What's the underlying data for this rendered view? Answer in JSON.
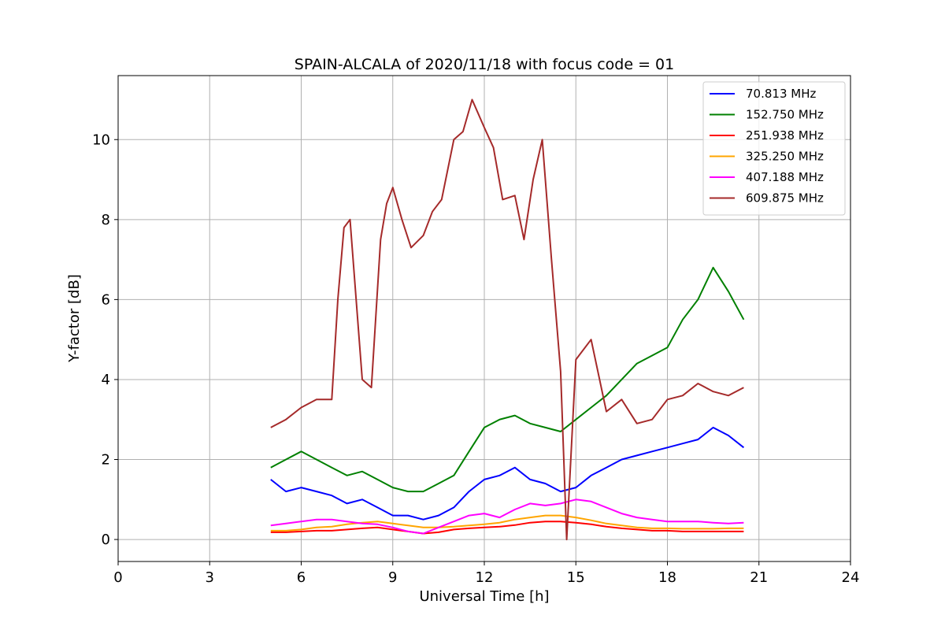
{
  "chart_data": {
    "type": "line",
    "title": "SPAIN-ALCALA of 2020/11/18 with focus code = 01",
    "xlabel": "Universal Time [h]",
    "ylabel": "Y-factor [dB]",
    "xlim": [
      0,
      24
    ],
    "ylim": [
      -0.55,
      11.6
    ],
    "xticks": [
      0,
      3,
      6,
      9,
      12,
      15,
      18,
      21,
      24
    ],
    "yticks": [
      0,
      2,
      4,
      6,
      8,
      10
    ],
    "grid": true,
    "legend_position": "top-right",
    "series": [
      {
        "name": " 70.813 MHz",
        "color": "#0000ff",
        "x": [
          5.0,
          5.5,
          6.0,
          6.5,
          7.0,
          7.5,
          8.0,
          8.5,
          9.0,
          9.5,
          10.0,
          10.5,
          11.0,
          11.5,
          12.0,
          12.5,
          13.0,
          13.5,
          14.0,
          14.5,
          15.0,
          15.5,
          16.0,
          16.5,
          17.0,
          17.5,
          18.0,
          18.5,
          19.0,
          19.5,
          20.0,
          20.5
        ],
        "y": [
          1.5,
          1.2,
          1.3,
          1.2,
          1.1,
          0.9,
          1.0,
          0.8,
          0.6,
          0.6,
          0.5,
          0.6,
          0.8,
          1.2,
          1.5,
          1.6,
          1.8,
          1.5,
          1.4,
          1.2,
          1.3,
          1.6,
          1.8,
          2.0,
          2.1,
          2.2,
          2.3,
          2.4,
          2.5,
          2.8,
          2.6,
          2.3
        ]
      },
      {
        "name": "152.750 MHz",
        "color": "#008000",
        "x": [
          5.0,
          5.5,
          6.0,
          6.5,
          7.0,
          7.5,
          8.0,
          8.5,
          9.0,
          9.5,
          10.0,
          10.5,
          11.0,
          11.5,
          12.0,
          12.5,
          13.0,
          13.5,
          14.0,
          14.5,
          15.0,
          15.5,
          16.0,
          16.5,
          17.0,
          17.5,
          18.0,
          18.5,
          19.0,
          19.5,
          20.0,
          20.5
        ],
        "y": [
          1.8,
          2.0,
          2.2,
          2.0,
          1.8,
          1.6,
          1.7,
          1.5,
          1.3,
          1.2,
          1.2,
          1.4,
          1.6,
          2.2,
          2.8,
          3.0,
          3.1,
          2.9,
          2.8,
          2.7,
          3.0,
          3.3,
          3.6,
          4.0,
          4.4,
          4.6,
          4.8,
          5.5,
          6.0,
          6.8,
          6.2,
          5.5
        ]
      },
      {
        "name": "251.938 MHz",
        "color": "#ff0000",
        "x": [
          5.0,
          5.5,
          6.0,
          6.5,
          7.0,
          7.5,
          8.0,
          8.5,
          9.0,
          9.5,
          10.0,
          10.5,
          11.0,
          11.5,
          12.0,
          12.5,
          13.0,
          13.5,
          14.0,
          14.5,
          15.0,
          15.5,
          16.0,
          16.5,
          17.0,
          17.5,
          18.0,
          18.5,
          19.0,
          19.5,
          20.0,
          20.5
        ],
        "y": [
          0.18,
          0.18,
          0.2,
          0.22,
          0.22,
          0.25,
          0.28,
          0.3,
          0.25,
          0.2,
          0.15,
          0.18,
          0.25,
          0.28,
          0.3,
          0.32,
          0.36,
          0.42,
          0.45,
          0.45,
          0.42,
          0.38,
          0.32,
          0.28,
          0.25,
          0.22,
          0.22,
          0.2,
          0.2,
          0.2,
          0.2,
          0.2
        ]
      },
      {
        "name": "325.250 MHz",
        "color": "#ffa500",
        "x": [
          5.0,
          5.5,
          6.0,
          6.5,
          7.0,
          7.5,
          8.0,
          8.5,
          9.0,
          9.5,
          10.0,
          10.5,
          11.0,
          11.5,
          12.0,
          12.5,
          13.0,
          13.5,
          14.0,
          14.5,
          15.0,
          15.5,
          16.0,
          16.5,
          17.0,
          17.5,
          18.0,
          18.5,
          19.0,
          19.5,
          20.0,
          20.5
        ],
        "y": [
          0.22,
          0.22,
          0.25,
          0.3,
          0.32,
          0.38,
          0.42,
          0.45,
          0.4,
          0.35,
          0.3,
          0.3,
          0.32,
          0.35,
          0.38,
          0.42,
          0.5,
          0.55,
          0.6,
          0.6,
          0.55,
          0.48,
          0.4,
          0.35,
          0.3,
          0.28,
          0.28,
          0.27,
          0.27,
          0.27,
          0.28,
          0.28
        ]
      },
      {
        "name": "407.188 MHz",
        "color": "#ff00ff",
        "x": [
          5.0,
          5.5,
          6.0,
          6.5,
          7.0,
          7.5,
          8.0,
          8.5,
          9.0,
          9.5,
          10.0,
          10.5,
          11.0,
          11.5,
          12.0,
          12.5,
          13.0,
          13.5,
          14.0,
          14.5,
          15.0,
          15.5,
          16.0,
          16.5,
          17.0,
          17.5,
          18.0,
          18.5,
          19.0,
          19.5,
          20.0,
          20.5
        ],
        "y": [
          0.35,
          0.4,
          0.45,
          0.5,
          0.5,
          0.45,
          0.4,
          0.38,
          0.3,
          0.2,
          0.15,
          0.3,
          0.45,
          0.6,
          0.65,
          0.55,
          0.75,
          0.9,
          0.85,
          0.9,
          1.0,
          0.95,
          0.8,
          0.65,
          0.55,
          0.5,
          0.45,
          0.45,
          0.45,
          0.42,
          0.4,
          0.42
        ]
      },
      {
        "name": "609.875 MHz",
        "color": "#a52a2a",
        "x": [
          5.0,
          5.5,
          6.0,
          6.5,
          7.0,
          7.2,
          7.4,
          7.6,
          8.0,
          8.3,
          8.6,
          8.8,
          9.0,
          9.3,
          9.6,
          10.0,
          10.3,
          10.6,
          11.0,
          11.3,
          11.6,
          12.0,
          12.3,
          12.6,
          13.0,
          13.3,
          13.6,
          13.9,
          14.2,
          14.5,
          14.7,
          15.0,
          15.5,
          16.0,
          16.5,
          17.0,
          17.5,
          18.0,
          18.5,
          19.0,
          19.5,
          20.0,
          20.5
        ],
        "y": [
          2.8,
          3.0,
          3.3,
          3.5,
          3.5,
          6.0,
          7.8,
          8.0,
          4.0,
          3.8,
          7.5,
          8.4,
          8.8,
          8.0,
          7.3,
          7.6,
          8.2,
          8.5,
          10.0,
          10.2,
          11.0,
          10.3,
          9.8,
          8.5,
          8.6,
          7.5,
          9.0,
          10.0,
          7.0,
          4.2,
          0.0,
          4.5,
          5.0,
          3.2,
          3.5,
          2.9,
          3.0,
          3.5,
          3.6,
          3.9,
          3.7,
          3.6,
          3.8
        ]
      }
    ]
  }
}
